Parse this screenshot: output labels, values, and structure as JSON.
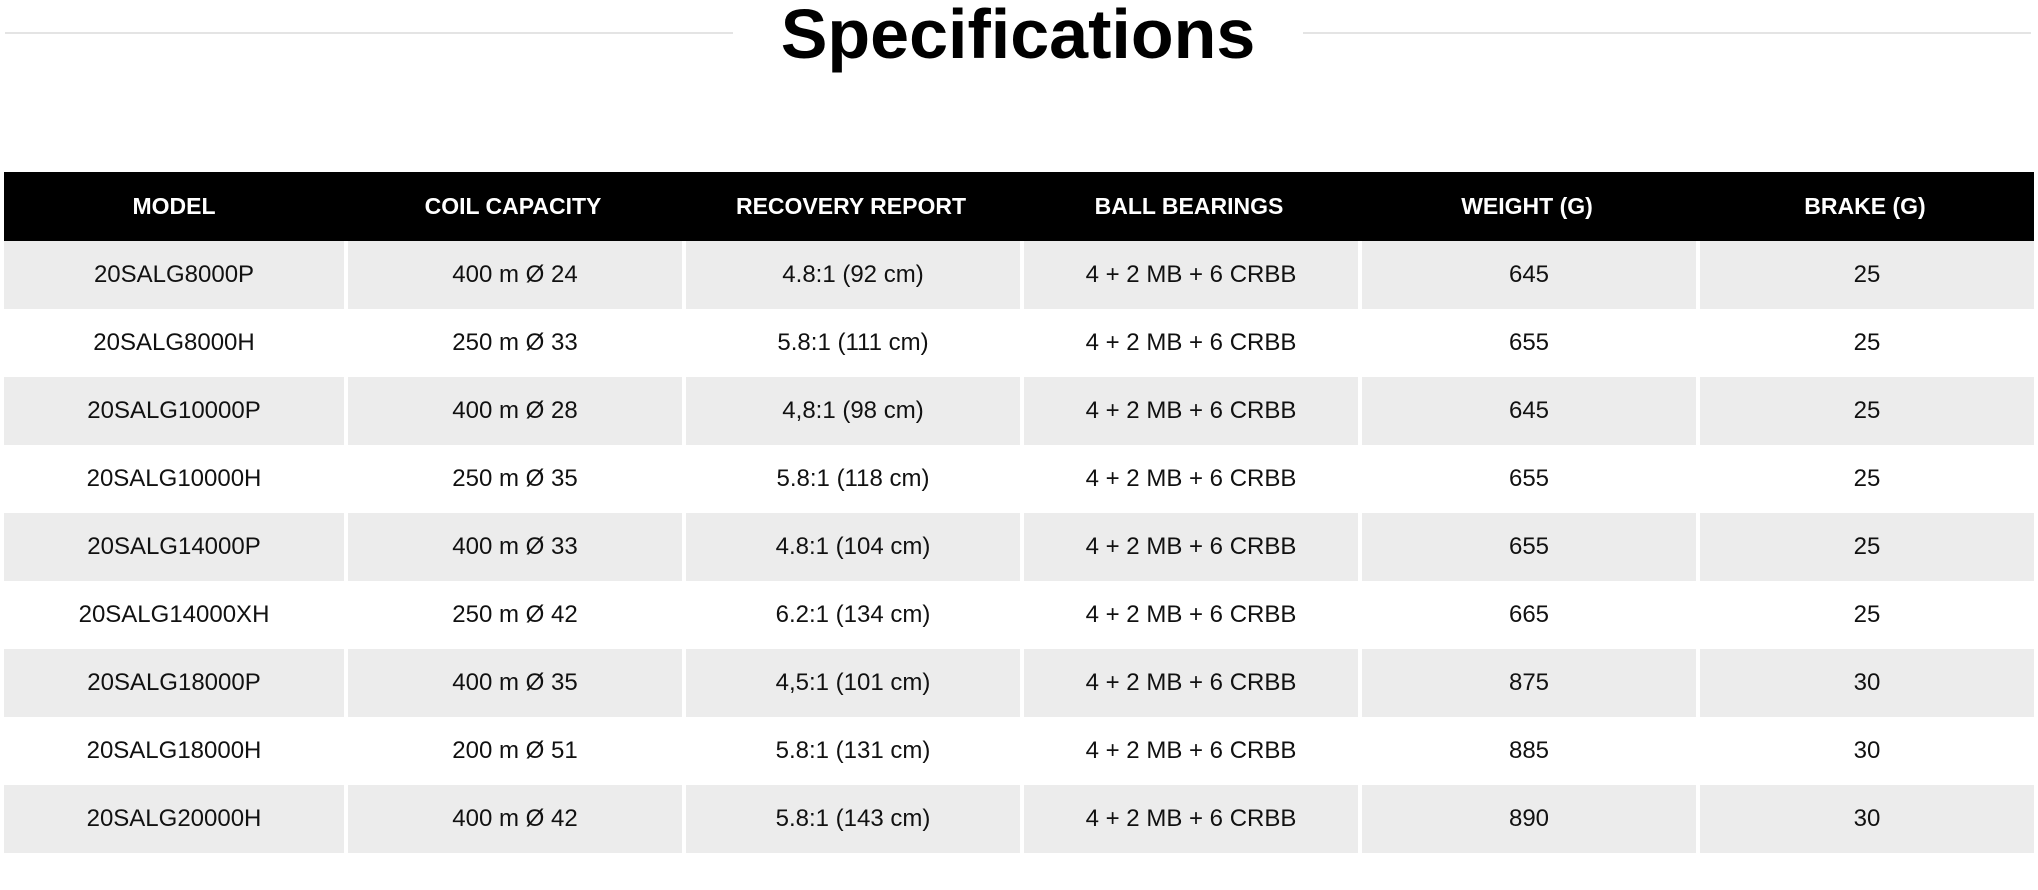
{
  "title": "Specifications",
  "table": {
    "headers": [
      "MODEL",
      "COIL CAPACITY",
      "RECOVERY REPORT",
      "BALL BEARINGS",
      "WEIGHT (G)",
      "BRAKE (G)"
    ],
    "rows": [
      [
        "20SALG8000P",
        "400 m Ø 24",
        "4.8:1 (92 cm)",
        "4 + 2 MB + 6 CRBB",
        "645",
        "25"
      ],
      [
        "20SALG8000H",
        "250 m Ø 33",
        "5.8:1 (111 cm)",
        "4 + 2 MB + 6 CRBB",
        "655",
        "25"
      ],
      [
        "20SALG10000P",
        "400 m Ø 28",
        "4,8:1 (98 cm)",
        "4 + 2 MB + 6 CRBB",
        "645",
        "25"
      ],
      [
        "20SALG10000H",
        "250 m Ø 35",
        "5.8:1 (118 cm)",
        "4 + 2 MB + 6 CRBB",
        "655",
        "25"
      ],
      [
        "20SALG14000P",
        "400 m Ø 33",
        "4.8:1 (104 cm)",
        "4 + 2 MB + 6 CRBB",
        "655",
        "25"
      ],
      [
        "20SALG14000XH",
        "250 m Ø 42",
        "6.2:1 (134 cm)",
        "4 + 2 MB + 6 CRBB",
        "665",
        "25"
      ],
      [
        "20SALG18000P",
        "400 m Ø 35",
        "4,5:1 (101 cm)",
        "4 + 2 MB + 6 CRBB",
        "875",
        "30"
      ],
      [
        "20SALG18000H",
        "200 m Ø 51",
        "5.8:1 (131 cm)",
        "4 + 2 MB + 6 CRBB",
        "885",
        "30"
      ],
      [
        "20SALG20000H",
        "400 m Ø 42",
        "5.8:1 (143 cm)",
        "4 + 2 MB + 6 CRBB",
        "890",
        "30"
      ]
    ]
  },
  "colors": {
    "header_background": "#000000",
    "header_text": "#ffffff",
    "row_shaded": "#ececec",
    "row_plain": "#ffffff",
    "title_rule": "#e4e4e4"
  }
}
